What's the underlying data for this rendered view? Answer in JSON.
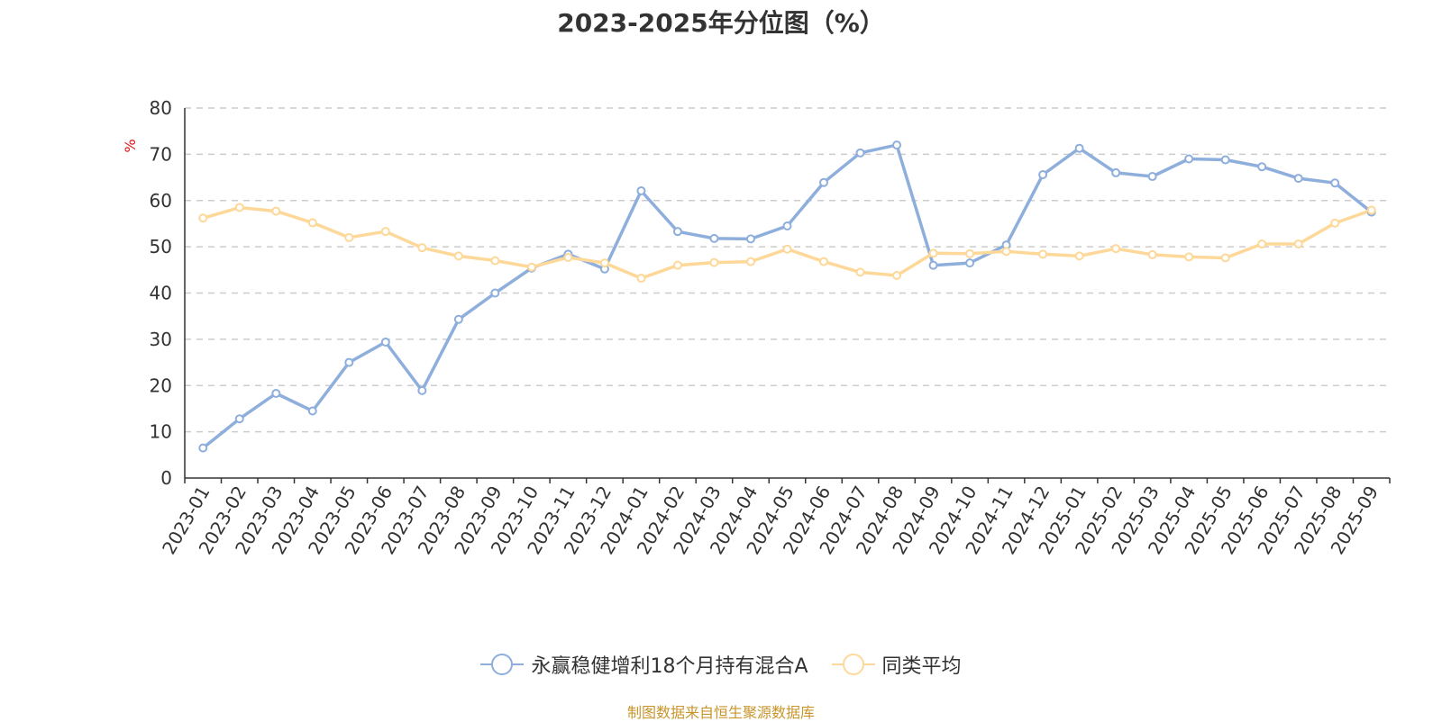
{
  "chart_data": {
    "type": "line",
    "title": "2023-2025年分位图（%）",
    "ylabel": "%",
    "xlabel": "",
    "ylim": [
      0,
      80
    ],
    "yticks": [
      0,
      10,
      20,
      30,
      40,
      50,
      60,
      70,
      80
    ],
    "grid": true,
    "legend_position": "bottom",
    "categories": [
      "2023-01",
      "2023-02",
      "2023-03",
      "2023-04",
      "2023-05",
      "2023-06",
      "2023-07",
      "2023-08",
      "2023-09",
      "2023-10",
      "2023-11",
      "2023-12",
      "2024-01",
      "2024-02",
      "2024-03",
      "2024-04",
      "2024-05",
      "2024-06",
      "2024-07",
      "2024-08",
      "2024-09",
      "2024-10",
      "2024-11",
      "2024-12",
      "2025-01",
      "2025-02",
      "2025-03",
      "2025-04",
      "2025-05",
      "2025-06",
      "2025-07",
      "2025-08",
      "2025-09"
    ],
    "series": [
      {
        "name": "永赢稳健增利18个月持有混合A",
        "color": "#8eaedc",
        "values": [
          6.5,
          12.8,
          18.3,
          14.5,
          25.0,
          29.4,
          18.9,
          34.3,
          40.0,
          45.4,
          48.4,
          45.2,
          62.1,
          53.3,
          51.8,
          51.7,
          54.5,
          63.9,
          70.3,
          72.0,
          46.0,
          46.5,
          50.4,
          65.6,
          71.3,
          66.0,
          65.2,
          69.0,
          68.8,
          67.3,
          64.8,
          63.8,
          57.5
        ]
      },
      {
        "name": "同类平均",
        "color": "#fdd898",
        "values": [
          56.2,
          58.5,
          57.7,
          55.2,
          52.0,
          53.3,
          49.8,
          48.0,
          47.0,
          45.6,
          47.7,
          46.5,
          43.2,
          46.0,
          46.6,
          46.8,
          49.5,
          46.8,
          44.5,
          43.8,
          48.6,
          48.5,
          49.0,
          48.4,
          48.0,
          49.6,
          48.3,
          47.8,
          47.6,
          50.6,
          50.6,
          55.1,
          57.9
        ]
      }
    ]
  },
  "source_note": "制图数据来自恒生聚源数据库"
}
